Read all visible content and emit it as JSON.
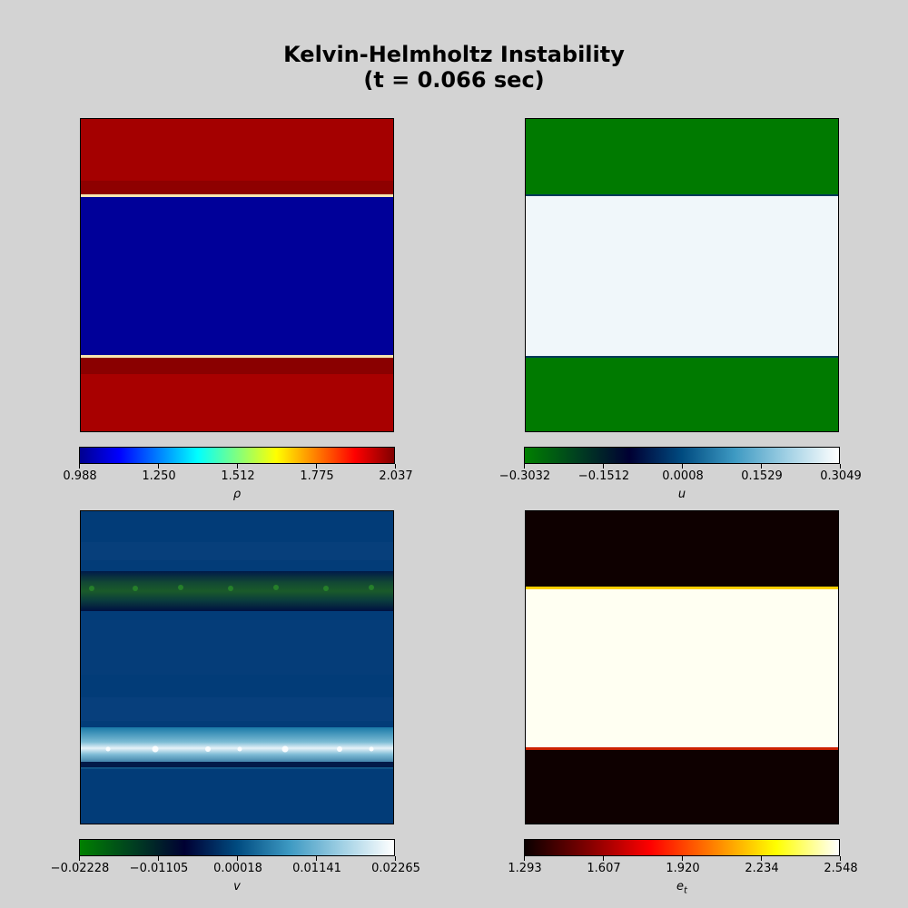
{
  "figure": {
    "title_line1": "Kelvin-Helmholtz Instability",
    "title_line2": "(t = 0.066 sec)"
  },
  "chart_data": [
    {
      "type": "heatmap",
      "variable": "ρ",
      "colormap": "jet",
      "colorbar_ticks": [
        "0.988",
        "1.250",
        "1.512",
        "1.775",
        "2.037"
      ],
      "colorbar_range": [
        0.988,
        2.037
      ],
      "colorbar_label": "ρ",
      "profile": "dense fluid at top and bottom (~2.0), light fluid in middle band (~1.0)"
    },
    {
      "type": "heatmap",
      "variable": "u",
      "colormap": "ocean",
      "colorbar_ticks": [
        "−0.3032",
        "−0.1512",
        "0.0008",
        "0.1529",
        "0.3049"
      ],
      "colorbar_range": [
        -0.3032,
        0.3049
      ],
      "colorbar_label": "u",
      "profile": "u ≈ -0.3 in outer layers, u ≈ +0.3 in middle band"
    },
    {
      "type": "heatmap",
      "variable": "v",
      "colormap": "ocean",
      "colorbar_ticks": [
        "−0.02228",
        "−0.01105",
        "0.00018",
        "0.01141",
        "0.02265"
      ],
      "colorbar_range": [
        -0.02228,
        0.02265
      ],
      "colorbar_label": "v",
      "profile": "v ≈ 0 background with perturbations along the two shear interfaces"
    },
    {
      "type": "heatmap",
      "variable": "e_t",
      "colormap": "hot",
      "colorbar_ticks": [
        "1.293",
        "1.607",
        "1.920",
        "2.234",
        "2.548"
      ],
      "colorbar_range": [
        1.293,
        2.548
      ],
      "colorbar_label_main": "e",
      "colorbar_label_sub": "t",
      "profile": "e_t ≈ 1.29 in outer layers, e_t ≈ 2.55 in middle band"
    }
  ]
}
